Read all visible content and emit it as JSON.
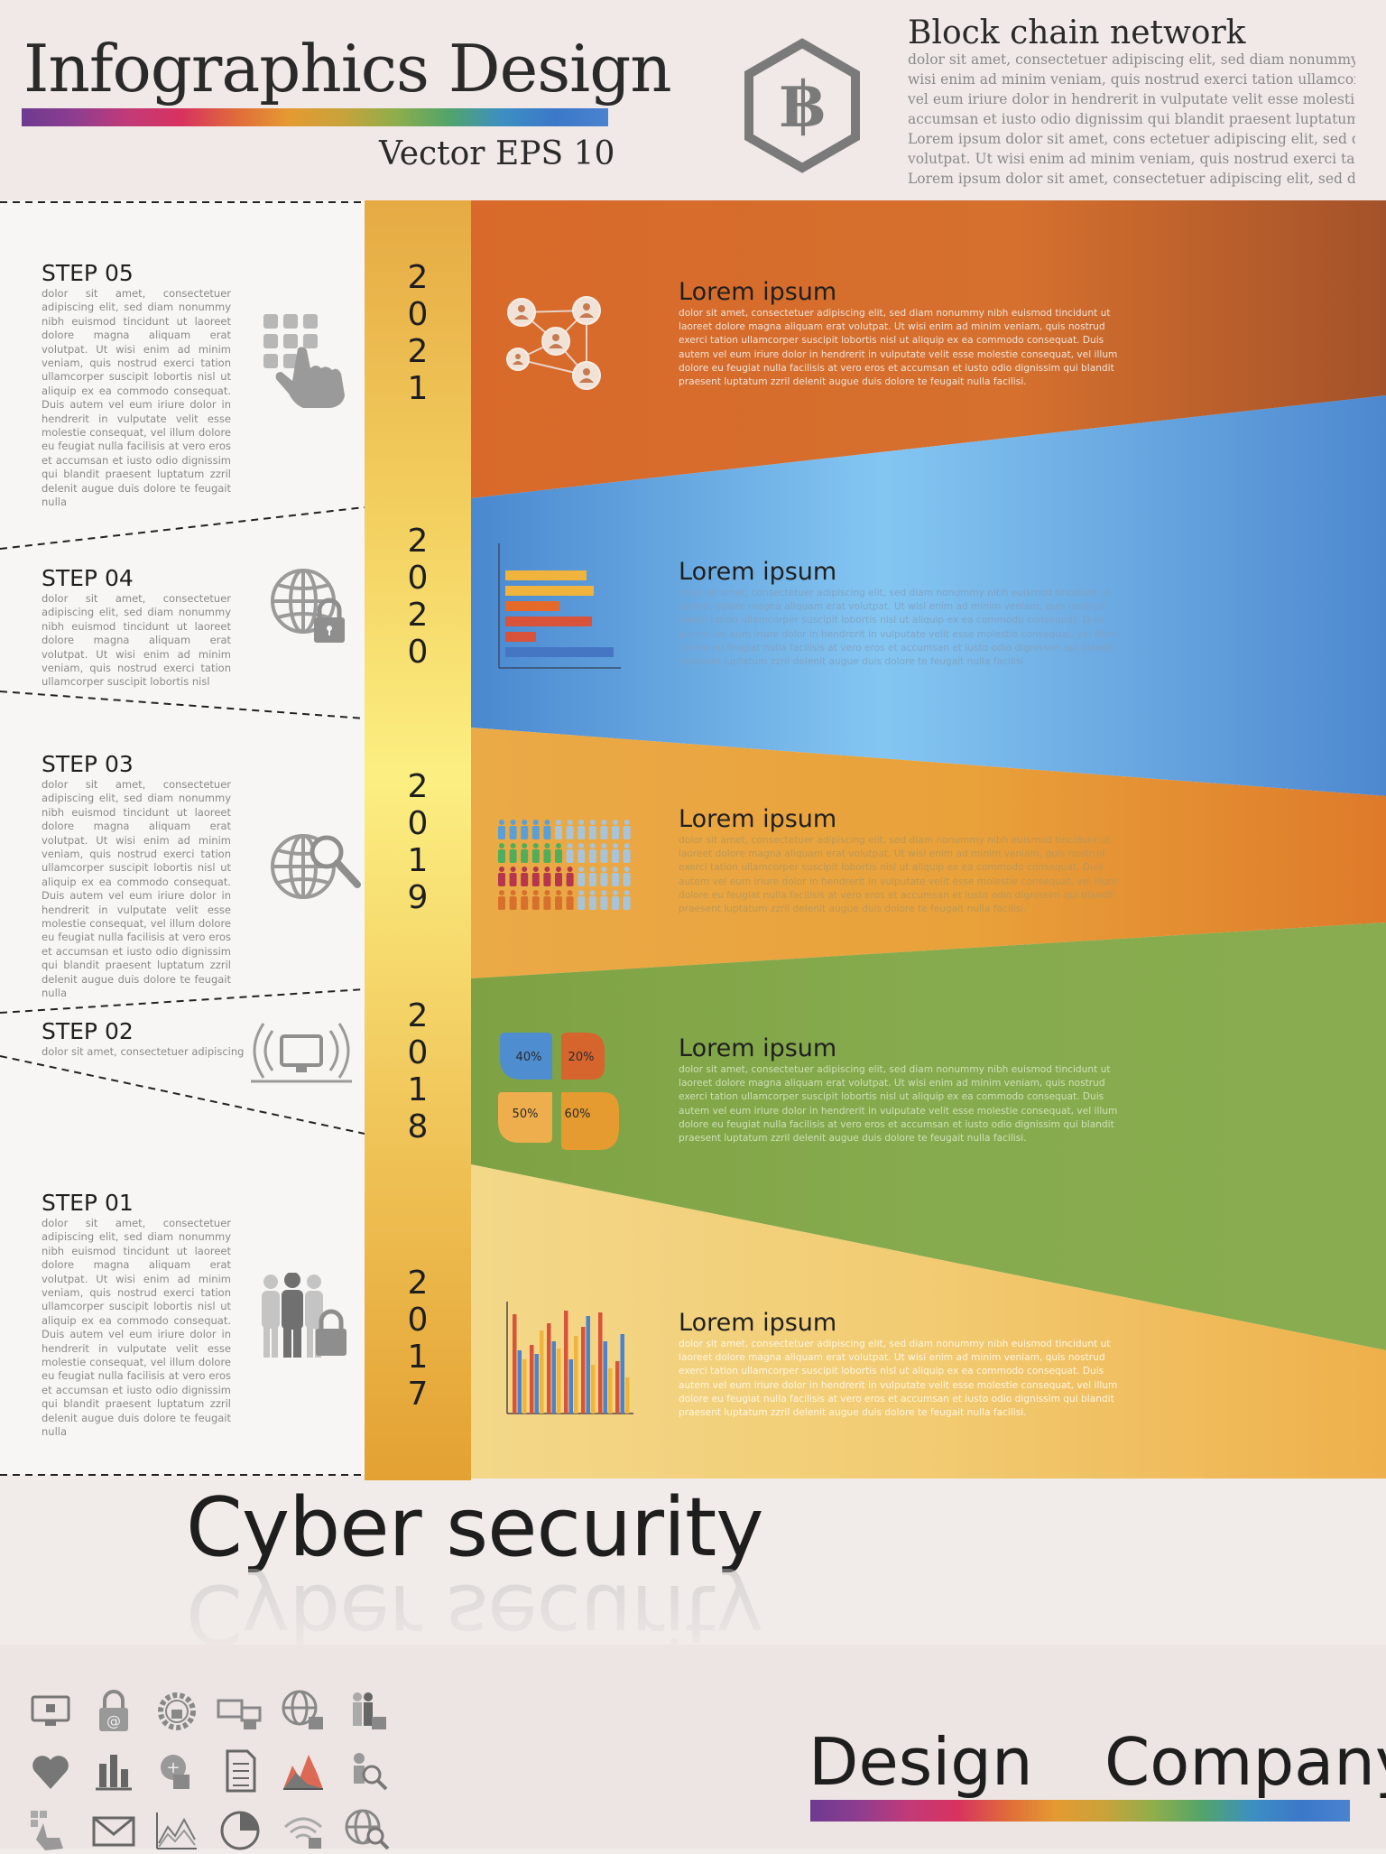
{
  "header": {
    "title": "Infographics Design",
    "subtitle": "Vector  EPS 10",
    "logo_icon": "baht-hexagon-icon",
    "blockchain": {
      "title": "Block chain network",
      "lines": [
        "dolor sit amet, consectetuer adipiscing elit, sed diam nonummy nibh",
        "wisi enim ad minim veniam, quis nostrud exerci tation ullamcorper s",
        "vel eum iriure dolor in hendrerit in vulputate velit esse molestie cons",
        "accumsan et iusto odio dignissim qui blandit praesent luptatum zzril",
        "Lorem ipsum dolor sit amet, cons ectetuer adipiscing elit, sed diam",
        "volutpat. Ut wisi enim ad minim veniam, quis nostrud exerci tation",
        "Lorem ipsum dolor sit amet, consectetuer adipiscing elit, sed diam n"
      ]
    }
  },
  "steps": [
    {
      "label": "STEP 05",
      "icon": "touch-keypad-icon",
      "text": "dolor sit amet, consectetuer adipiscing elit, sed diam nonummy nibh euismod tincidunt ut laoreet dolore magna aliquam erat volutpat. Ut wisi enim ad minim veniam, quis nostrud exerci tation ullamcorper suscipit lobortis nisl ut aliquip ex ea commodo consequat. Duis autem vel eum iriure dolor in hendrerit in vulputate velit esse molestie consequat, vel illum dolore eu feugiat nulla facilisis at vero eros et accumsan et iusto odio dignissim qui blandit praesent luptatum zzril delenit augue duis dolore te feugait nulla"
    },
    {
      "label": "STEP 04",
      "icon": "globe-lock-icon",
      "text": "dolor sit amet, consectetuer adipiscing elit, sed diam nonummy nibh euismod tincidunt ut laoreet dolore magna aliquam erat volutpat. Ut wisi enim ad minim veniam, quis nostrud exerci tation ullamcorper suscipit lobortis nisl"
    },
    {
      "label": "STEP 03",
      "icon": "globe-search-icon",
      "text": "dolor sit amet, consectetuer adipiscing elit, sed diam nonummy nibh euismod tincidunt ut laoreet dolore magna aliquam erat volutpat. Ut wisi enim ad minim veniam, quis nostrud exerci tation ullamcorper suscipit lobortis nisl ut aliquip ex ea commodo consequat. Duis autem vel eum iriure dolor in hendrerit in vulputate velit esse molestie consequat, vel illum dolore eu feugiat nulla facilisis at vero eros et accumsan et iusto odio dignissim qui blandit praesent luptatum zzril delenit augue duis dolore te feugait nulla"
    },
    {
      "label": "STEP 02",
      "icon": "wireless-monitor-icon",
      "text": "dolor sit amet, consectetuer adipiscing"
    },
    {
      "label": "STEP 01",
      "icon": "people-lock-icon",
      "text": "dolor sit amet, consectetuer adipiscing elit, sed diam nonummy nibh euismod tincidunt ut laoreet dolore magna aliquam erat volutpat. Ut wisi enim ad minim veniam, quis nostrud exerci tation ullamcorper suscipit lobortis nisl ut aliquip ex ea commodo consequat. Duis autem vel eum iriure dolor in hendrerit in vulputate velit esse molestie consequat, vel illum dolore eu feugiat nulla facilisis at vero eros et accumsan et iusto odio dignissim qui blandit praesent luptatum zzril delenit augue duis dolore te feugait nulla"
    }
  ],
  "years": [
    "2021",
    "2020",
    "2019",
    "2018",
    "2017"
  ],
  "rows": [
    {
      "title": "Lorem ipsum",
      "icon": "network-nodes-icon",
      "color": "#d46a2c",
      "text": "dolor sit amet, consectetuer adipiscing elit, sed diam nonummy nibh euismod tincidunt ut laoreet dolore magna aliquam erat volutpat. Ut wisi enim ad minim veniam, quis nostrud exerci tation ullamcorper suscipit lobortis nisl ut aliquip ex ea commodo consequat. Duis autem vel eum iriure dolor in hendrerit in vulputate velit esse molestie consequat, vel illum dolore eu feugiat nulla facilisis at vero eros et accumsan et iusto odio dignissim qui blandit praesent luptatum zzril delenit augue duis dolore te feugait nulla facilisi."
    },
    {
      "title": "Lorem ipsum",
      "icon": "bar-chart-icon",
      "color": "#5b9bd8",
      "text": "dolor sit amet, consectetuer adipiscing elit, sed diam nonummy nibh euismod tincidunt ut laoreet dolore magna aliquam erat volutpat. Ut wisi enim ad minim veniam, quis nostrud exerci tation ullamcorper suscipit lobortis nisl ut aliquip ex ea commodo consequat. Duis autem vel eum iriure dolor in hendrerit in vulputate velit esse molestie consequat, vel illum dolore eu feugiat nulla facilisis at vero eros et accumsan et iusto odio dignissim qui blandit praesent luptatum zzril delenit augue duis dolore te feugait nulla facilisi."
    },
    {
      "title": "Lorem ipsum",
      "icon": "people-rows-icon",
      "color": "#e8a43d",
      "text": "dolor sit amet, consectetuer adipiscing elit, sed diam nonummy nibh euismod tincidunt ut laoreet dolore magna aliquam erat volutpat. Ut wisi enim ad minim veniam, quis nostrud exerci tation ullamcorper suscipit lobortis nisl ut aliquip ex ea commodo consequat. Duis autem vel eum iriure dolor in hendrerit in vulputate velit esse molestie consequat, vel illum dolore eu feugiat nulla facilisis at vero eros et accumsan et iusto odio dignissim qui blandit praesent luptatum zzril delenit augue duis dolore te feugait nulla facilisi."
    },
    {
      "title": "Lorem ipsum",
      "icon": "petal-chart-icon",
      "color": "#86a84c",
      "text": "dolor sit amet, consectetuer adipiscing elit, sed diam nonummy nibh euismod tincidunt ut laoreet dolore magna aliquam erat volutpat. Ut wisi enim ad minim veniam, quis nostrud exerci tation ullamcorper suscipit lobortis nisl ut aliquip ex ea commodo consequat. Duis autem vel eum iriure dolor in hendrerit in vulputate velit esse molestie consequat, vel illum dolore eu feugiat nulla facilisis at vero eros et accumsan et iusto odio dignissim qui blandit praesent luptatum zzril delenit augue duis dolore te feugait nulla facilisi."
    },
    {
      "title": "Lorem ipsum",
      "icon": "column-chart-icon",
      "color": "#f1c872",
      "text": "dolor sit amet, consectetuer adipiscing elit, sed diam nonummy nibh euismod tincidunt ut laoreet dolore magna aliquam erat volutpat. Ut wisi enim ad minim veniam, quis nostrud exerci tation ullamcorper suscipit lobortis nisl ut aliquip ex ea commodo consequat. Duis autem vel eum iriure dolor in hendrerit in vulputate velit esse molestie consequat, vel illum dolore eu feugiat nulla facilisis at vero eros et accumsan et iusto odio dignissim qui blandit praesent luptatum zzril delenit augue duis dolore te feugait nulla facilisi."
    }
  ],
  "petal_values": [
    "40%",
    "20%",
    "50%",
    "60%"
  ],
  "main_heading": "Cyber security",
  "footer": {
    "design": "Design",
    "company": "Company",
    "icons": [
      "monitor-lock-icon",
      "padlock-at-icon",
      "gear-lock-icon",
      "network-lock-icon",
      "globe-lock-icon",
      "people-lock-icon",
      "heart-icon",
      "bar-graph-icon",
      "puzzle-lock-icon",
      "document-icon",
      "mountain-chart-icon",
      "person-search-icon",
      "touch-keypad-icon",
      "envelope-icon",
      "line-chart-icon",
      "pie-chart-icon",
      "wifi-lock-icon",
      "globe-search-icon"
    ]
  }
}
